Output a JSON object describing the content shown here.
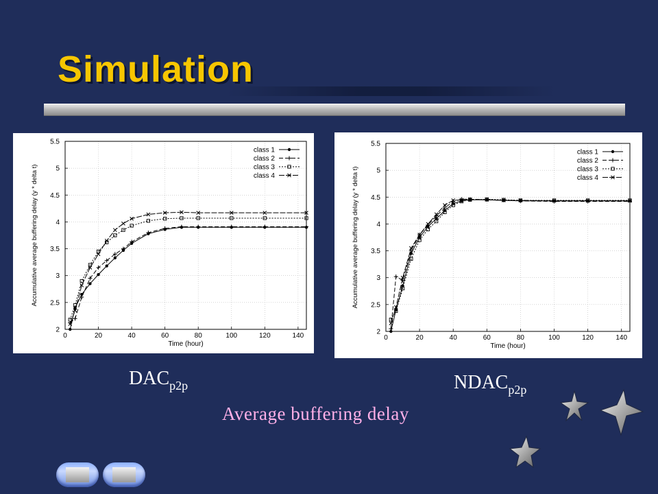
{
  "slide": {
    "title": "Simulation",
    "caption_left": {
      "text": "DAC",
      "sub": "p2p"
    },
    "caption_right": {
      "text": "NDAC",
      "sub": "p2p"
    },
    "subtitle": "Average buffering delay",
    "nav": {
      "prev": "previous-slide",
      "next": "next-slide"
    },
    "colors": {
      "background": "#1f2d5a",
      "title": "#f7c600",
      "subtitle": "#ffb0e8"
    }
  },
  "chart_data": [
    {
      "type": "line",
      "xlabel": "Time (hour)",
      "ylabel": "Accumulative average buffering delay (y * delta t)",
      "xlim": [
        0,
        145
      ],
      "ylim": [
        2,
        5.5
      ],
      "xticks": [
        0,
        20,
        40,
        60,
        80,
        100,
        120,
        140
      ],
      "yticks": [
        2,
        2.5,
        3,
        3.5,
        4,
        4.5,
        5,
        5.5
      ],
      "grid": true,
      "legend_position": "top-right",
      "series": [
        {
          "name": "class 1",
          "x": [
            3,
            6,
            10,
            15,
            20,
            25,
            30,
            35,
            40,
            50,
            60,
            70,
            80,
            100,
            120,
            145
          ],
          "y": [
            2.0,
            2.4,
            2.65,
            2.85,
            3.02,
            3.18,
            3.33,
            3.47,
            3.6,
            3.78,
            3.86,
            3.9,
            3.9,
            3.9,
            3.9,
            3.9
          ]
        },
        {
          "name": "class 2",
          "x": [
            3,
            6,
            10,
            15,
            20,
            25,
            30,
            35,
            40,
            50,
            60,
            70,
            80,
            100,
            120,
            145
          ],
          "y": [
            2.12,
            2.2,
            2.6,
            2.95,
            3.15,
            3.28,
            3.4,
            3.5,
            3.63,
            3.8,
            3.88,
            3.91,
            3.91,
            3.91,
            3.91,
            3.91
          ]
        },
        {
          "name": "class 3",
          "x": [
            3,
            6,
            10,
            15,
            20,
            25,
            30,
            35,
            40,
            50,
            60,
            70,
            80,
            100,
            120,
            145
          ],
          "y": [
            2.18,
            2.45,
            2.9,
            3.2,
            3.45,
            3.62,
            3.75,
            3.85,
            3.93,
            4.02,
            4.06,
            4.07,
            4.07,
            4.07,
            4.07,
            4.07
          ]
        },
        {
          "name": "class 4",
          "x": [
            3,
            6,
            10,
            15,
            20,
            25,
            30,
            35,
            40,
            50,
            60,
            70,
            80,
            100,
            120,
            145
          ],
          "y": [
            2.1,
            2.35,
            2.82,
            3.15,
            3.4,
            3.65,
            3.85,
            3.97,
            4.06,
            4.14,
            4.17,
            4.18,
            4.17,
            4.17,
            4.17,
            4.17
          ]
        }
      ]
    },
    {
      "type": "line",
      "xlabel": "Time (hour)",
      "ylabel": "Accumulative average buffering delay (y * delta t)",
      "xlim": [
        0,
        145
      ],
      "ylim": [
        2,
        5.5
      ],
      "xticks": [
        0,
        20,
        40,
        60,
        80,
        100,
        120,
        140
      ],
      "yticks": [
        2,
        2.5,
        3,
        3.5,
        4,
        4.5,
        5,
        5.5
      ],
      "grid": true,
      "legend_position": "top-right",
      "series": [
        {
          "name": "class 1",
          "x": [
            3,
            6,
            10,
            15,
            20,
            25,
            30,
            35,
            40,
            45,
            50,
            60,
            70,
            80,
            100,
            120,
            145
          ],
          "y": [
            2.0,
            2.4,
            2.85,
            3.45,
            3.75,
            3.95,
            4.1,
            4.25,
            4.38,
            4.43,
            4.45,
            4.45,
            4.44,
            4.43,
            4.43,
            4.43,
            4.43
          ]
        },
        {
          "name": "class 2",
          "x": [
            3,
            6,
            10,
            15,
            20,
            25,
            30,
            35,
            40,
            45,
            50,
            60,
            70,
            80,
            100,
            120,
            145
          ],
          "y": [
            2.05,
            3.02,
            2.95,
            3.5,
            3.8,
            3.98,
            4.15,
            4.3,
            4.42,
            4.46,
            4.46,
            4.45,
            4.44,
            4.43,
            4.42,
            4.42,
            4.42
          ]
        },
        {
          "name": "class 3",
          "x": [
            3,
            6,
            10,
            15,
            20,
            25,
            30,
            35,
            40,
            45,
            50,
            60,
            70,
            80,
            100,
            120,
            145
          ],
          "y": [
            2.22,
            2.38,
            2.8,
            3.35,
            3.7,
            3.9,
            4.05,
            4.22,
            4.35,
            4.42,
            4.45,
            4.46,
            4.45,
            4.44,
            4.44,
            4.44,
            4.44
          ]
        },
        {
          "name": "class 4",
          "x": [
            3,
            6,
            10,
            15,
            20,
            25,
            30,
            35,
            40,
            45,
            50,
            60,
            70,
            80,
            100,
            120,
            145
          ],
          "y": [
            2.15,
            2.45,
            3.0,
            3.55,
            3.8,
            4.0,
            4.18,
            4.35,
            4.44,
            4.45,
            4.46,
            4.45,
            4.44,
            4.44,
            4.43,
            4.43,
            4.43
          ]
        }
      ]
    }
  ]
}
